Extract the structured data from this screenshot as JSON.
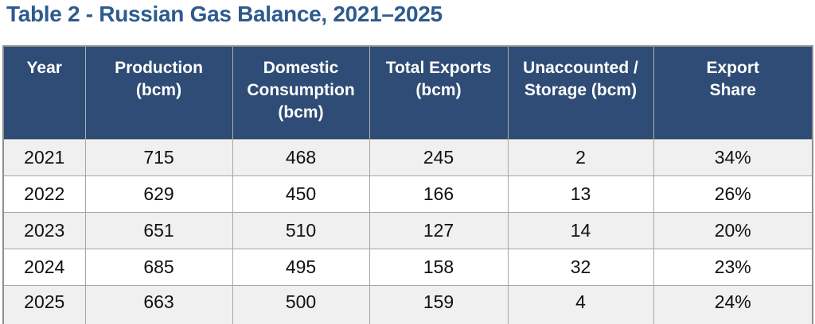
{
  "title": "Table 2 - Russian Gas Balance, 2021–2025",
  "table": {
    "columns": [
      {
        "label": "Year"
      },
      {
        "label": "Production\n(bcm)"
      },
      {
        "label": "Domestic\nConsumption\n(bcm)"
      },
      {
        "label": "Total Exports\n(bcm)"
      },
      {
        "label": "Unaccounted /\nStorage (bcm)"
      },
      {
        "label": "Export\nShare"
      }
    ],
    "rows": [
      [
        "2021",
        "715",
        "468",
        "245",
        "2",
        "34%"
      ],
      [
        "2022",
        "629",
        "450",
        "166",
        "13",
        "26%"
      ],
      [
        "2023",
        "651",
        "510",
        "127",
        "14",
        "20%"
      ],
      [
        "2024",
        "685",
        "495",
        "158",
        "32",
        "23%"
      ],
      [
        "2025",
        "663",
        "500",
        "159",
        "4",
        "24%"
      ]
    ]
  },
  "chart_data": {
    "type": "table",
    "title": "Table 2 - Russian Gas Balance, 2021–2025",
    "columns": [
      "Year",
      "Production (bcm)",
      "Domestic Consumption (bcm)",
      "Total Exports (bcm)",
      "Unaccounted / Storage (bcm)",
      "Export Share"
    ],
    "rows": [
      [
        2021,
        715,
        468,
        245,
        2,
        "34%"
      ],
      [
        2022,
        629,
        450,
        166,
        13,
        "26%"
      ],
      [
        2023,
        651,
        510,
        127,
        14,
        "20%"
      ],
      [
        2024,
        685,
        495,
        158,
        32,
        "23%"
      ],
      [
        2025,
        663,
        500,
        159,
        4,
        "24%"
      ]
    ]
  },
  "colors": {
    "header_bg": "#2e4c75",
    "header_text": "#ffffff",
    "title_text": "#2d5b8e",
    "row_stripe": "#f0f0f0",
    "row_white": "#ffffff",
    "border_inner": "#a6a6a6",
    "border_outer": "#8f8f8f",
    "cell_text": "#111111"
  }
}
